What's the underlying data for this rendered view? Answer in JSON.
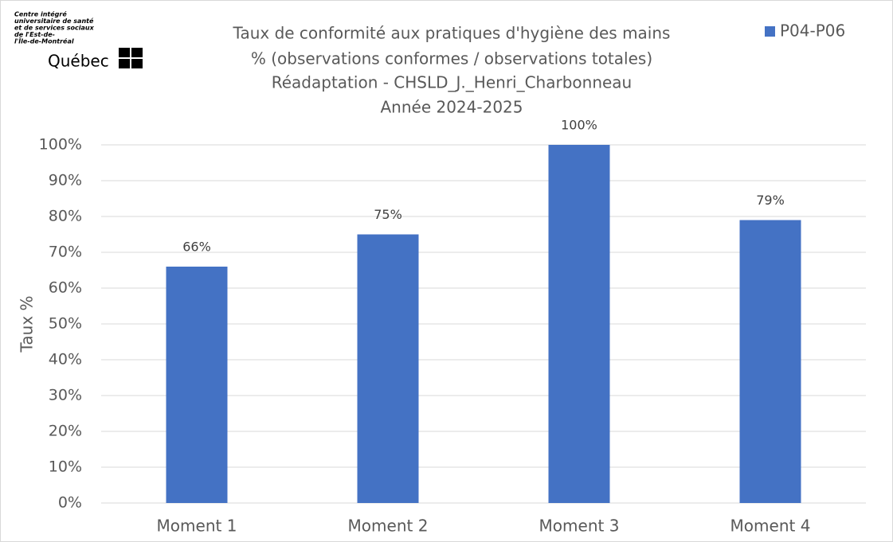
{
  "chart_data": {
    "type": "bar",
    "title": [
      "Taux de conformité aux pratiques d'hygiène des mains",
      "% (observations conformes / observations totales)",
      "Réadaptation - CHSLD_J._Henri_Charbonneau",
      "Année 2024-2025"
    ],
    "logo": {
      "lines": [
        "Centre intégré",
        "universitaire de santé",
        "et de services sociaux",
        "de l'Est-de-",
        "l'Île-de-Montréal"
      ],
      "name": "Québec"
    },
    "y_label": "Taux %",
    "categories": [
      "Moment 1",
      "Moment 2",
      "Moment 3",
      "Moment 4"
    ],
    "series": [
      {
        "name": "P04-P06",
        "color": "#4472c4",
        "values": [
          66,
          75,
          100,
          79
        ],
        "value_labels": [
          "66%",
          "75%",
          "100%",
          "79%"
        ]
      }
    ],
    "ylim": [
      0,
      100
    ],
    "yticks": [
      {
        "value": 0,
        "label": "0%"
      },
      {
        "value": 10,
        "label": "10%"
      },
      {
        "value": 20,
        "label": "20%"
      },
      {
        "value": 30,
        "label": "30%"
      },
      {
        "value": 40,
        "label": "40%"
      },
      {
        "value": 50,
        "label": "50%"
      },
      {
        "value": 60,
        "label": "60%"
      },
      {
        "value": 70,
        "label": "70%"
      },
      {
        "value": 80,
        "label": "80%"
      },
      {
        "value": 90,
        "label": "90%"
      },
      {
        "value": 100,
        "label": "100%"
      }
    ],
    "grid": true,
    "legend": "top-right"
  }
}
